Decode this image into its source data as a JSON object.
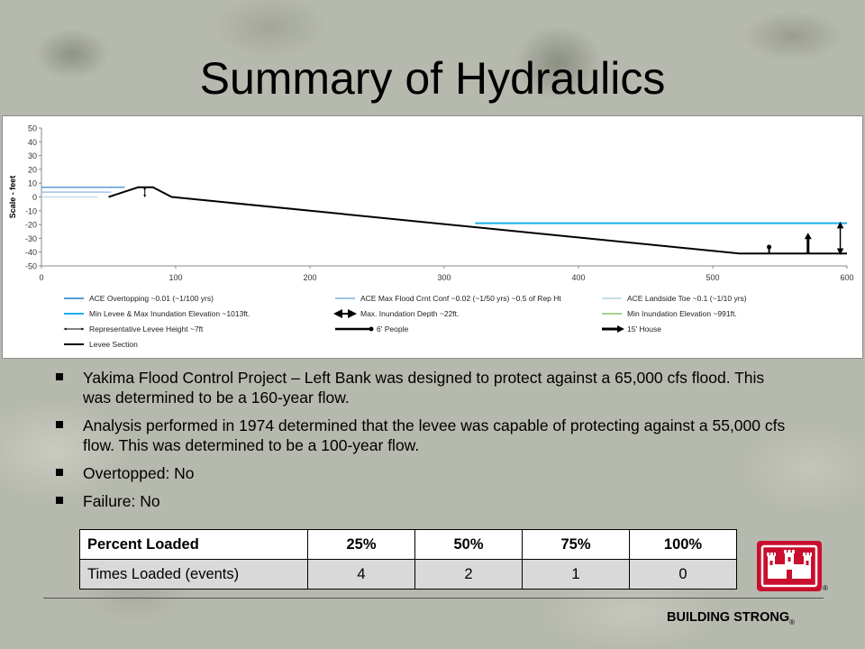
{
  "slide": {
    "title": "Summary of Hydraulics",
    "bullets": [
      "Yakima Flood Control Project – Left Bank was designed to protect against a 65,000 cfs flood.  This was determined to be a 160-year flow.",
      "Analysis performed in 1974 determined that the levee was capable of protecting against a 55,000 cfs flow.  This was determined to be a 100-year flow.",
      "Overtopped: No",
      "Failure: No"
    ],
    "table": {
      "header": [
        "Percent Loaded",
        "25%",
        "50%",
        "75%",
        "100%"
      ],
      "row": [
        "Times Loaded (events)",
        "4",
        "2",
        "1",
        "0"
      ]
    },
    "footer": "BUILDING STRONG",
    "registered_mark": "®",
    "colors": {
      "logo_red": "#c8102e"
    }
  },
  "chart_data": {
    "type": "line",
    "ylabel": "Scale - feet",
    "xlabel": "",
    "xlim": [
      0,
      600
    ],
    "ylim": [
      -50,
      50
    ],
    "xticks": [
      0,
      100,
      200,
      300,
      400,
      500,
      600
    ],
    "yticks": [
      50,
      40,
      30,
      20,
      10,
      0,
      -10,
      -20,
      -30,
      -40,
      -50
    ],
    "series": [
      {
        "name": "ACE Overtopping  ~0.01  (~1/100 yrs)",
        "color": "#5b9bd5",
        "width": 1.5,
        "x": [
          0,
          62
        ],
        "y": [
          7,
          7
        ]
      },
      {
        "name": "ACE Max Flood Crnt Conf ~0.02  (~1/50 yrs)  ~0.5 of Rep Ht",
        "color": "#9dc3e6",
        "width": 1.5,
        "x": [
          0,
          52
        ],
        "y": [
          3.5,
          3.5
        ]
      },
      {
        "name": "ACE Landside Toe  ~0.1  (~1/10 yrs)",
        "color": "#c5dcee",
        "width": 1.5,
        "x": [
          0,
          42
        ],
        "y": [
          0,
          0
        ]
      },
      {
        "name": "Min Levee & Max Inundation Elevation ~1013ft.",
        "color": "#1ab0e8",
        "width": 2,
        "x": [
          323,
          600
        ],
        "y": [
          -19,
          -19
        ]
      },
      {
        "name": "Min Inundation Elevation ~991ft.",
        "color": "#a9d18e",
        "width": 1.5,
        "x": [],
        "y": []
      },
      {
        "name": "Levee Section",
        "color": "#000000",
        "width": 2,
        "x": [
          50,
          72,
          83,
          97,
          520,
          600
        ],
        "y": [
          0,
          7,
          7,
          0,
          -41,
          -41
        ]
      }
    ],
    "markers": [
      {
        "name": "Max. Inundation Depth  ~22ft.",
        "kind": "dbl-arrow",
        "x": 595,
        "y_top": -19,
        "y_bottom": -41
      },
      {
        "name": "Representative Levee Height ~7ft",
        "kind": "small-dbl-arrow",
        "x": 77,
        "y_top": 7,
        "y_bottom": 0
      },
      {
        "name": "6' People",
        "kind": "person",
        "x": 542,
        "y_top": -35,
        "y_bottom": -41
      },
      {
        "name": "15' House",
        "kind": "house",
        "x": 571,
        "y_top": -26,
        "y_bottom": -41
      }
    ]
  }
}
